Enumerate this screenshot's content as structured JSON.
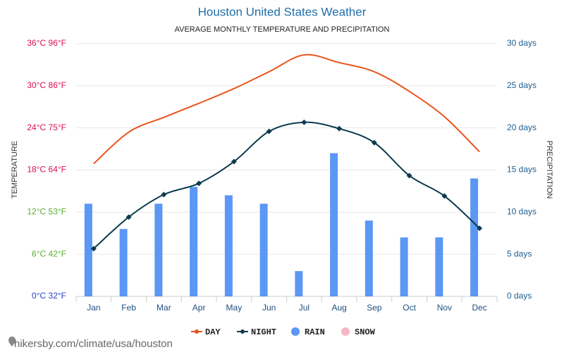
{
  "chart_data": {
    "type": "line",
    "title": "Houston United States Weather",
    "subtitle": "AVERAGE MONTHLY TEMPERATURE AND PRECIPITATION",
    "y_label": "TEMPERATURE",
    "y2_label": "PRECIPITATION",
    "source": "hikersby.com/climate/usa/houston",
    "categories": [
      "Jan",
      "Feb",
      "Mar",
      "Apr",
      "May",
      "Jun",
      "Jul",
      "Aug",
      "Sep",
      "Oct",
      "Nov",
      "Dec"
    ],
    "ylim": [
      0,
      36
    ],
    "yticks": [
      {
        "value": 0,
        "label": "0°C 32°F",
        "color": "#2342c2"
      },
      {
        "value": 6,
        "label": "6°C 42°F",
        "color": "#5aae2e"
      },
      {
        "value": 12,
        "label": "12°C 53°F",
        "color": "#5aae2e"
      },
      {
        "value": 18,
        "label": "18°C 64°F",
        "color": "#d9104e"
      },
      {
        "value": 24,
        "label": "24°C 75°F",
        "color": "#d9104e"
      },
      {
        "value": 30,
        "label": "30°C 86°F",
        "color": "#d9104e"
      },
      {
        "value": 36,
        "label": "36°C 96°F",
        "color": "#d9104e"
      }
    ],
    "y2lim": [
      0,
      30
    ],
    "y2ticks": [
      {
        "value": 0,
        "label": "0 days"
      },
      {
        "value": 5,
        "label": "5 days"
      },
      {
        "value": 10,
        "label": "10 days"
      },
      {
        "value": 15,
        "label": "15 days"
      },
      {
        "value": 20,
        "label": "20 days"
      },
      {
        "value": 25,
        "label": "25 days"
      },
      {
        "value": 30,
        "label": "30 days"
      }
    ],
    "grid": true,
    "series": [
      {
        "name": "DAY",
        "color": "#e8541c",
        "values": [
          18.9,
          23.4,
          25.5,
          27.5,
          29.6,
          32,
          34.4,
          33.3,
          32,
          29.2,
          25.6,
          20.6
        ]
      },
      {
        "name": "NIGHT",
        "color": "#0c3b4e",
        "values": [
          6.8,
          11.3,
          14.5,
          16.1,
          19.2,
          23.5,
          24.8,
          23.9,
          21.9,
          17.2,
          14.3,
          9.7
        ]
      },
      {
        "name": "RAIN",
        "color": "#5b97f5",
        "axis": "y2",
        "type": "bar",
        "values": [
          11,
          8,
          11,
          13,
          12,
          11,
          3,
          17,
          9,
          7,
          7,
          14
        ]
      },
      {
        "name": "SNOW",
        "color": "#f7b6c8",
        "axis": "y2",
        "type": "bar",
        "values": [
          0,
          0,
          0,
          0,
          0,
          0,
          0,
          0,
          0,
          0,
          0,
          0
        ]
      }
    ]
  }
}
